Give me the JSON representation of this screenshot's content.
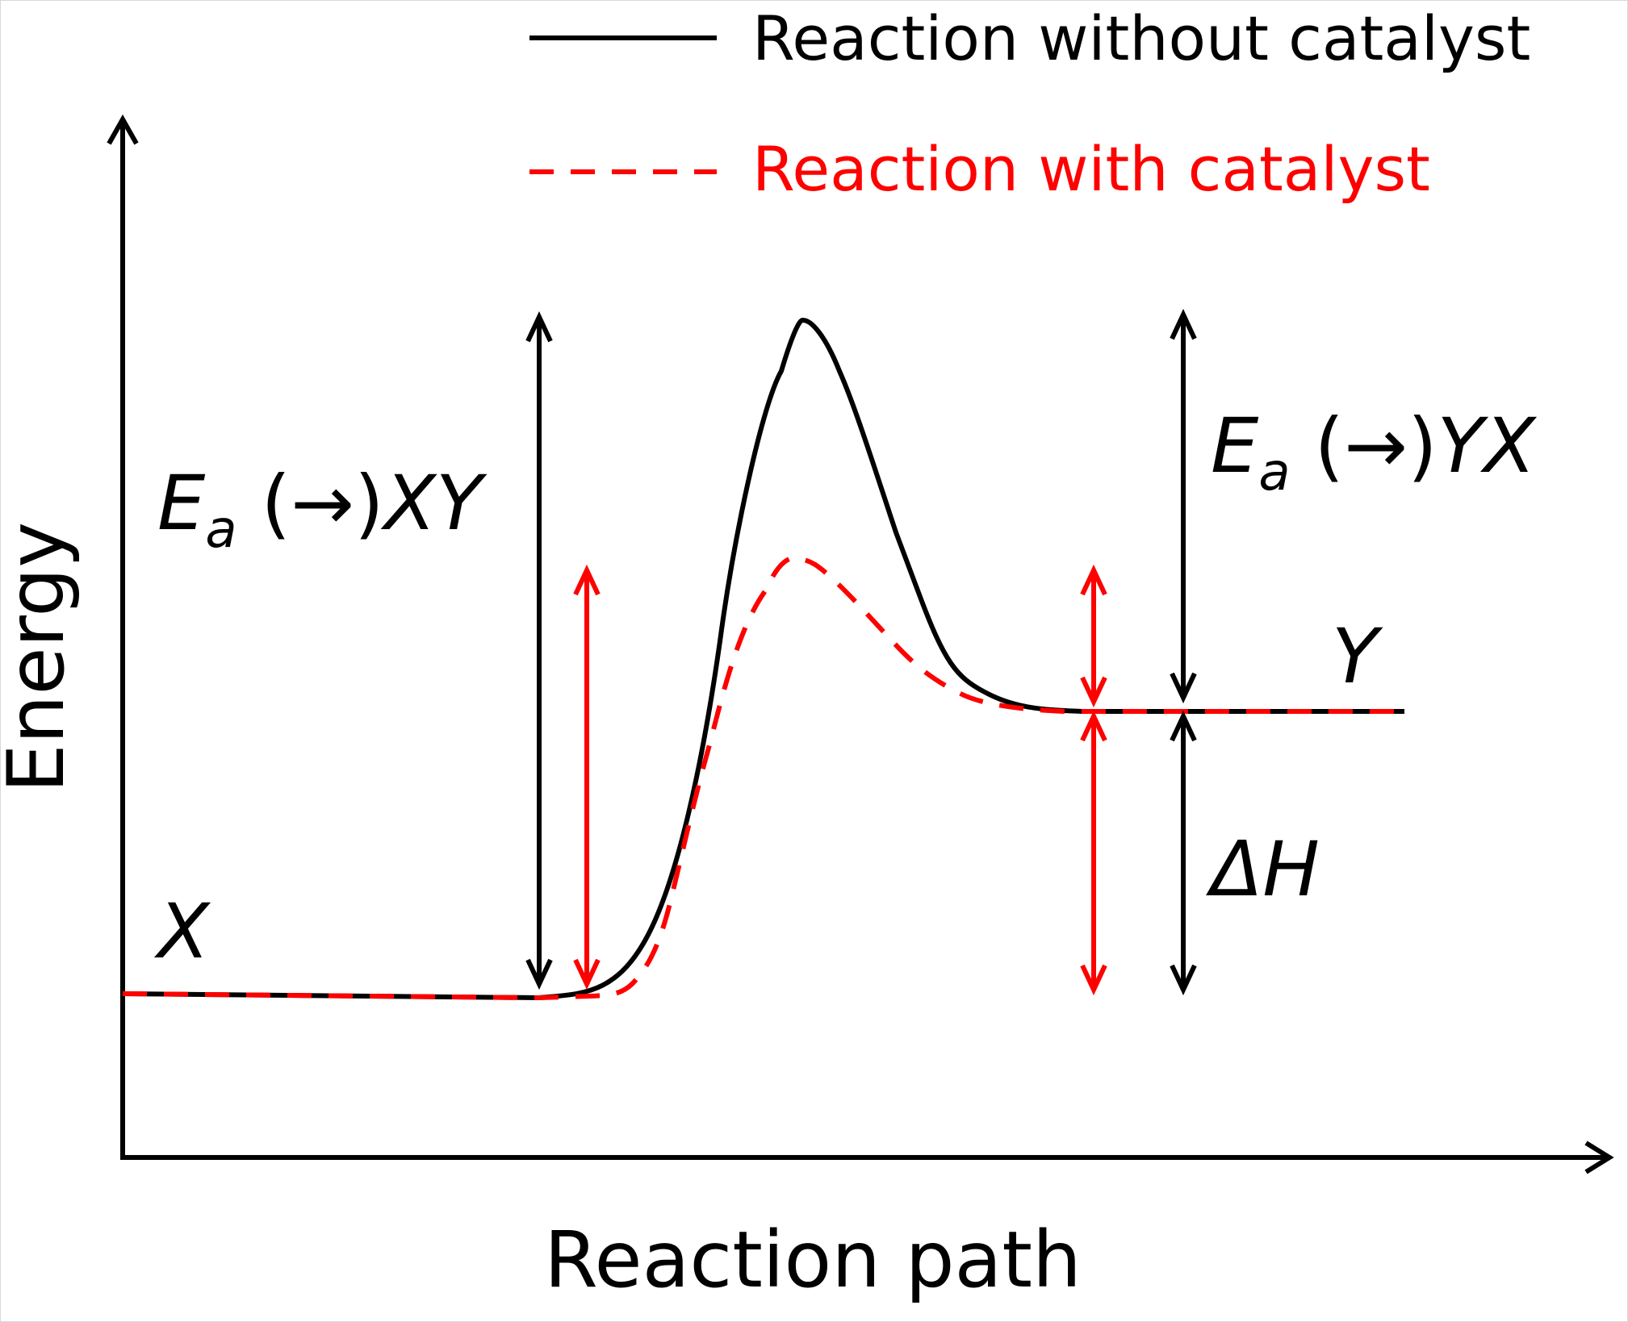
{
  "title": "",
  "legend": {
    "position": "top-right",
    "items": [
      {
        "label": "Reaction without catalyst",
        "color": "#000000",
        "style": "solid"
      },
      {
        "label": "Reaction with catalyst",
        "color": "#ff0000",
        "style": "dashed"
      }
    ]
  },
  "axes": {
    "x_label": "Reaction path",
    "y_label": "Energy"
  },
  "labels": {
    "reactant": "X",
    "product": "Y",
    "ea_forward_base": "E",
    "ea_forward_sub": "a",
    "ea_forward_arrow": " (→)",
    "ea_forward_species": "XY",
    "ea_reverse_base": "E",
    "ea_reverse_sub": "a",
    "ea_reverse_arrow": " (→)",
    "ea_reverse_species": "YX",
    "delta_h": "ΔH"
  },
  "colors": {
    "uncatalyzed": "#000000",
    "catalyzed": "#ff0000",
    "axis": "#000000",
    "background": "#ffffff"
  }
}
